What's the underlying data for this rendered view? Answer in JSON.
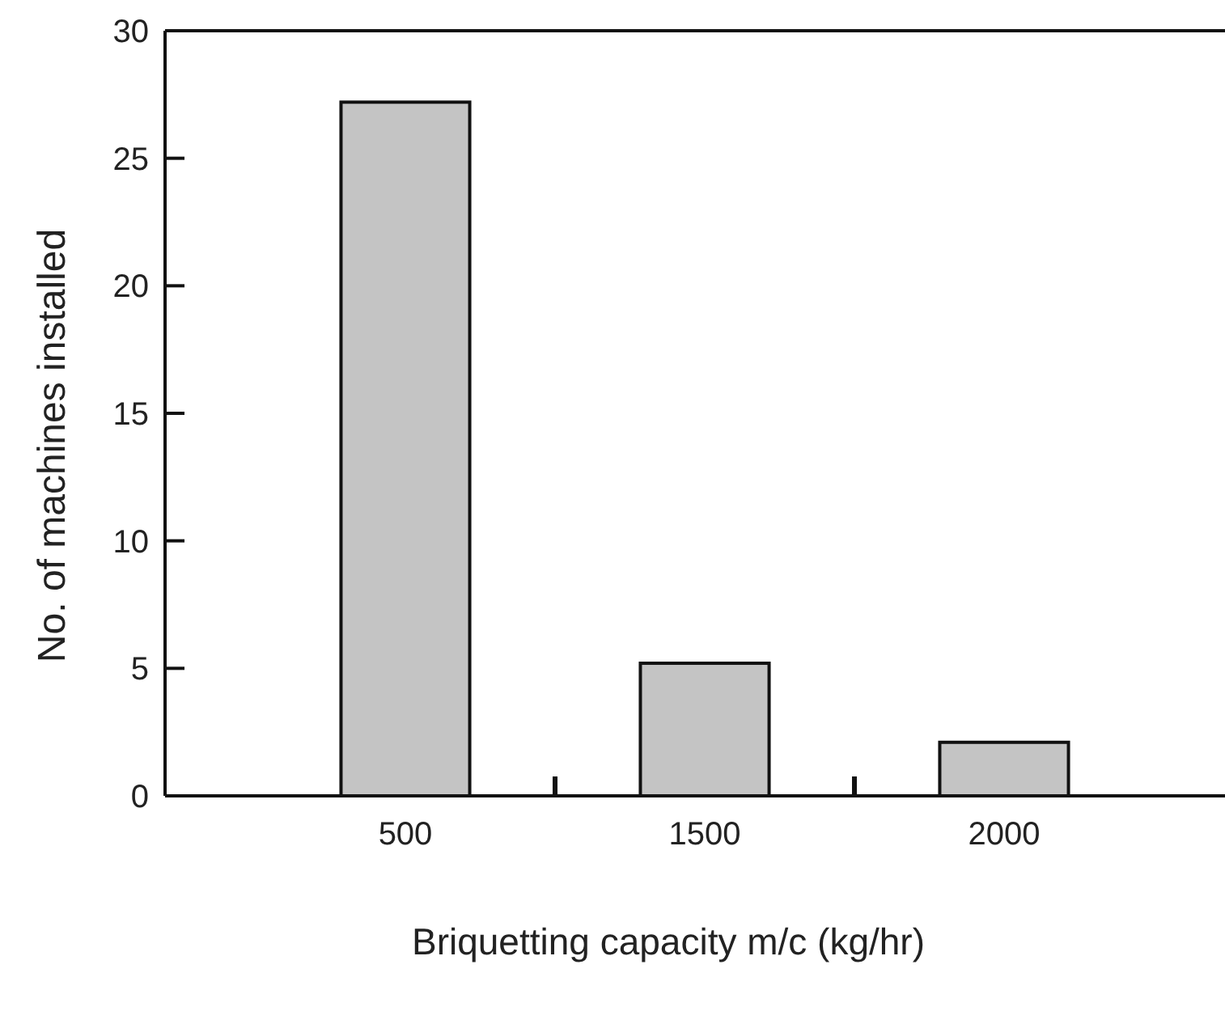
{
  "chart_data": {
    "type": "bar",
    "xlabel": "Briquetting capacity m/c (kg/hr)",
    "ylabel": "No. of machines installed",
    "categories": [
      "500",
      "1500",
      "2000"
    ],
    "values": [
      27.2,
      5.2,
      2.1
    ],
    "color": "#c4c4c4",
    "ylim": [
      0,
      30
    ],
    "yticks": [
      0,
      5,
      10,
      15,
      20,
      25,
      30
    ],
    "grid": false
  }
}
